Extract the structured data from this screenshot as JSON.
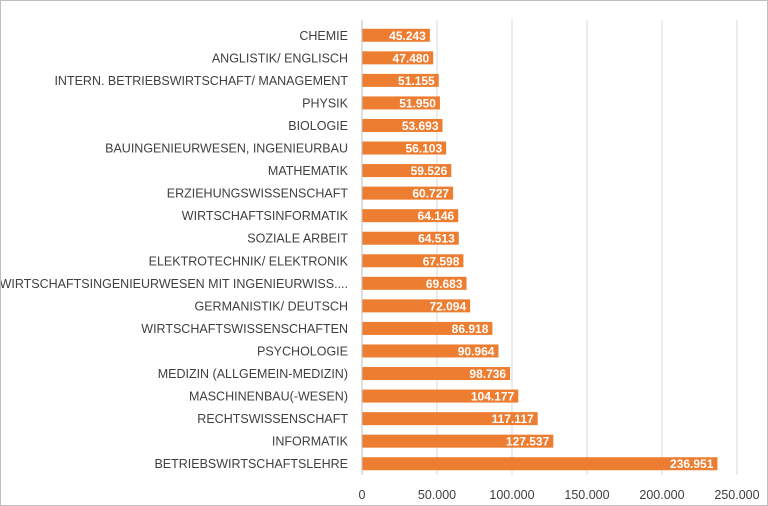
{
  "chart_data": {
    "type": "bar",
    "orientation": "horizontal",
    "categories": [
      "CHEMIE",
      "ANGLISTIK/ ENGLISCH",
      "INTERN. BETRIEBSWIRTSCHAFT/ MANAGEMENT",
      "PHYSIK",
      "BIOLOGIE",
      "BAUINGENIEURWESEN, INGENIEURBAU",
      "MATHEMATIK",
      "ERZIEHUNGSWISSENSCHAFT",
      "WIRTSCHAFTSINFORMATIK",
      "SOZIALE ARBEIT",
      "ELEKTROTECHNIK/ ELEKTRONIK",
      "WIRTSCHAFTSINGENIEURWESEN MIT INGENIEURWISS....",
      "GERMANISTIK/ DEUTSCH",
      "WIRTSCHAFTSWISSENSCHAFTEN",
      "PSYCHOLOGIE",
      "MEDIZIN (ALLGEMEIN-MEDIZIN)",
      "MASCHINENBAU(-WESEN)",
      "RECHTSWISSENSCHAFT",
      "INFORMATIK",
      "BETRIEBSWIRTSCHAFTSLEHRE"
    ],
    "values": [
      45243,
      47480,
      51155,
      51950,
      53693,
      56103,
      59526,
      60727,
      64146,
      64513,
      67598,
      69683,
      72094,
      86918,
      90964,
      98736,
      104177,
      117117,
      127537,
      236951
    ],
    "data_labels": [
      "45.243",
      "47.480",
      "51.155",
      "51.950",
      "53.693",
      "56.103",
      "59.526",
      "60.727",
      "64.146",
      "64.513",
      "67.598",
      "69.683",
      "72.094",
      "86.918",
      "90.964",
      "98.736",
      "104.177",
      "117.117",
      "127.537",
      "236.951"
    ],
    "xlim": [
      0,
      250000
    ],
    "x_ticks": [
      0,
      50000,
      100000,
      150000,
      200000,
      250000
    ],
    "x_tick_labels": [
      "0",
      "50.000",
      "100.000",
      "150.000",
      "200.000",
      "250.000"
    ],
    "grid": true,
    "title": "",
    "xlabel": "",
    "ylabel": "",
    "colors": {
      "bar": "#ed7d31",
      "grid": "#d9d9d9",
      "text": "#404040",
      "label": "#ffffff"
    }
  }
}
